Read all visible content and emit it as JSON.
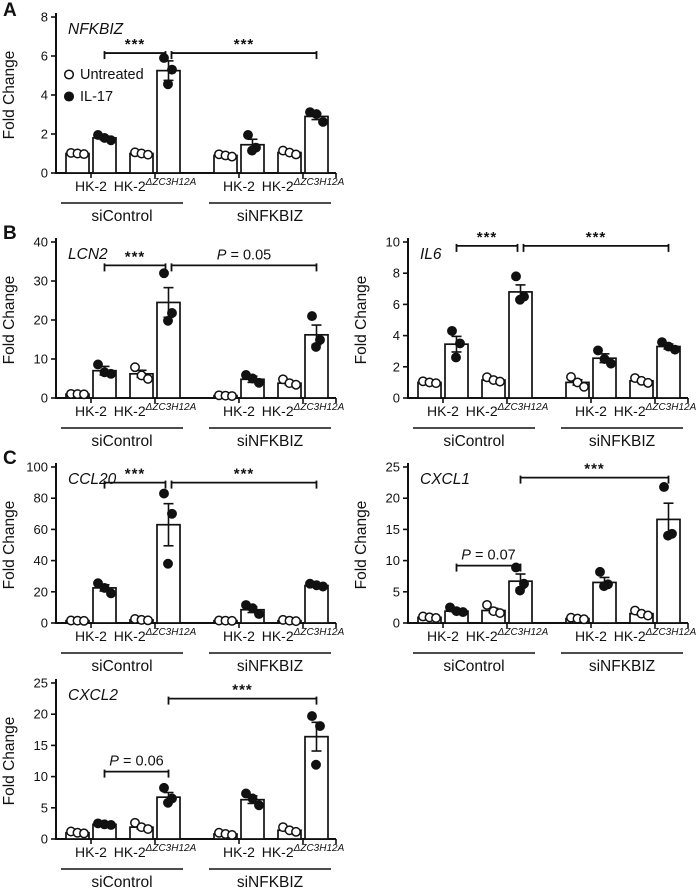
{
  "figure": {
    "background": "#ffffff",
    "ink": "#111111"
  },
  "panels": [
    {
      "letter": "A"
    },
    {
      "letter": "B"
    },
    {
      "letter": "C"
    }
  ],
  "legend": {
    "untreated_label": "Untreated",
    "il17_label": "IL-17"
  },
  "chart_data": [
    {
      "id": "nfkbiz",
      "panel": "A",
      "type": "bar",
      "title": "NFKBIZ",
      "ylabel": "Fold Change",
      "ylim": [
        0,
        8
      ],
      "yticks": [
        0,
        2,
        4,
        6,
        8
      ],
      "grid": false,
      "legend_position": "inside-left",
      "legend": [
        {
          "marker": "open",
          "label": "Untreated"
        },
        {
          "marker": "filled",
          "label": "IL-17"
        }
      ],
      "cells": [
        {
          "base": "HK-2",
          "sup": ""
        },
        {
          "base": "HK-2",
          "sup": "ΔZC3H12A"
        },
        {
          "base": "HK-2",
          "sup": ""
        },
        {
          "base": "HK-2",
          "sup": "ΔZC3H12A"
        }
      ],
      "conditions": [
        "siControl",
        "siNFKBIZ"
      ],
      "groups": [
        {
          "untreated": {
            "mean": 1.0,
            "err": 0.05,
            "points": [
              1.03,
              1.0,
              0.97
            ]
          },
          "il17": {
            "mean": 1.8,
            "err": 0.09,
            "points": [
              1.95,
              1.8,
              1.68
            ]
          }
        },
        {
          "untreated": {
            "mean": 1.0,
            "err": 0.05,
            "points": [
              1.06,
              1.0,
              0.94
            ]
          },
          "il17": {
            "mean": 5.25,
            "err": 0.5,
            "points": [
              5.9,
              5.3,
              4.55
            ]
          }
        },
        {
          "untreated": {
            "mean": 0.9,
            "err": 0.05,
            "points": [
              0.96,
              0.9,
              0.84
            ]
          },
          "il17": {
            "mean": 1.45,
            "err": 0.28,
            "points": [
              1.95,
              1.3,
              1.15
            ]
          }
        },
        {
          "untreated": {
            "mean": 1.05,
            "err": 0.07,
            "points": [
              1.15,
              1.05,
              0.95
            ]
          },
          "il17": {
            "mean": 2.9,
            "err": 0.16,
            "points": [
              3.12,
              3.02,
              2.62
            ]
          }
        }
      ],
      "sig": [
        {
          "from_bar": 1,
          "to_bar": 3,
          "y": 6.15,
          "label": "***",
          "kind": "stars",
          "to_dx": -3
        },
        {
          "from_bar": 3,
          "to_bar": 7,
          "y": 6.15,
          "label": "***",
          "kind": "stars",
          "from_dx": 3
        }
      ]
    },
    {
      "id": "lcn2",
      "panel": "B",
      "type": "bar",
      "title": "LCN2",
      "ylabel": "Fold Change",
      "ylim": [
        0,
        40
      ],
      "yticks": [
        0,
        10,
        20,
        30,
        40
      ],
      "grid": false,
      "cells": [
        {
          "base": "HK-2",
          "sup": ""
        },
        {
          "base": "HK-2",
          "sup": "ΔZC3H12A"
        },
        {
          "base": "HK-2",
          "sup": ""
        },
        {
          "base": "HK-2",
          "sup": "ΔZC3H12A"
        }
      ],
      "conditions": [
        "siControl",
        "siNFKBIZ"
      ],
      "groups": [
        {
          "untreated": {
            "mean": 1.0,
            "err": 0,
            "points": [
              1.05,
              1.0,
              0.95
            ]
          },
          "il17": {
            "mean": 7.0,
            "err": 1.1,
            "points": [
              8.6,
              6.6,
              6.2
            ]
          }
        },
        {
          "untreated": {
            "mean": 6.2,
            "err": 0.9,
            "points": [
              7.9,
              5.8,
              4.9
            ]
          },
          "il17": {
            "mean": 24.5,
            "err": 3.8,
            "points": [
              32,
              21.8,
              19.8
            ]
          }
        },
        {
          "untreated": {
            "mean": 0.6,
            "err": 0,
            "points": [
              0.7,
              0.6,
              0.5
            ]
          },
          "il17": {
            "mean": 4.8,
            "err": 0.8,
            "points": [
              5.9,
              5.0,
              3.9
            ]
          }
        },
        {
          "untreated": {
            "mean": 3.8,
            "err": 0.4,
            "points": [
              4.8,
              3.8,
              3.4
            ]
          },
          "il17": {
            "mean": 16.2,
            "err": 2.5,
            "points": [
              21,
              14.9,
              13.1
            ]
          }
        }
      ],
      "sig": [
        {
          "from_bar": 1,
          "to_bar": 3,
          "y": 34,
          "label": "***",
          "kind": "stars",
          "to_dx": -3
        },
        {
          "from_bar": 3,
          "to_bar": 7,
          "y": 34,
          "label": "P = 0.05",
          "kind": "p",
          "from_dx": 3
        }
      ]
    },
    {
      "id": "il6",
      "panel": "B",
      "type": "bar",
      "title": "IL6",
      "ylabel": "Fold Change",
      "ylim": [
        0,
        10
      ],
      "yticks": [
        0,
        2,
        4,
        6,
        8,
        10
      ],
      "grid": false,
      "cells": [
        {
          "base": "HK-2",
          "sup": ""
        },
        {
          "base": "HK-2",
          "sup": "ΔZC3H12A"
        },
        {
          "base": "HK-2",
          "sup": ""
        },
        {
          "base": "HK-2",
          "sup": "ΔZC3H12A"
        }
      ],
      "conditions": [
        "siControl",
        "siNFKBIZ"
      ],
      "groups": [
        {
          "untreated": {
            "mean": 1.0,
            "err": 0.05,
            "points": [
              1.07,
              1.0,
              0.95
            ]
          },
          "il17": {
            "mean": 3.45,
            "err": 0.5,
            "points": [
              4.3,
              3.5,
              2.6
            ]
          }
        },
        {
          "untreated": {
            "mean": 1.15,
            "err": 0.08,
            "points": [
              1.33,
              1.15,
              1.05
            ]
          },
          "il17": {
            "mean": 6.8,
            "err": 0.45,
            "points": [
              7.8,
              6.5,
              6.3
            ]
          }
        },
        {
          "untreated": {
            "mean": 1.0,
            "err": 0.17,
            "points": [
              1.35,
              1.0,
              0.72
            ]
          },
          "il17": {
            "mean": 2.55,
            "err": 0.28,
            "points": [
              3.05,
              2.5,
              2.2
            ]
          }
        },
        {
          "untreated": {
            "mean": 1.1,
            "err": 0.08,
            "points": [
              1.28,
              1.1,
              0.97
            ]
          },
          "il17": {
            "mean": 3.3,
            "err": 0.16,
            "points": [
              3.58,
              3.3,
              3.1
            ]
          }
        }
      ],
      "sig": [
        {
          "from_bar": 1,
          "to_bar": 3,
          "y": 9.75,
          "label": "***",
          "kind": "stars",
          "to_dx": -3
        },
        {
          "from_bar": 3,
          "to_bar": 7,
          "y": 9.75,
          "label": "***",
          "kind": "stars",
          "from_dx": 3
        }
      ]
    },
    {
      "id": "ccl20",
      "panel": "C",
      "type": "bar",
      "title": "CCL20",
      "ylabel": "Fold Change",
      "ylim": [
        0,
        100
      ],
      "yticks": [
        0,
        20,
        40,
        60,
        80,
        100
      ],
      "grid": false,
      "cells": [
        {
          "base": "HK-2",
          "sup": ""
        },
        {
          "base": "HK-2",
          "sup": "ΔZC3H12A"
        },
        {
          "base": "HK-2",
          "sup": ""
        },
        {
          "base": "HK-2",
          "sup": "ΔZC3H12A"
        }
      ],
      "conditions": [
        "siControl",
        "siNFKBIZ"
      ],
      "groups": [
        {
          "untreated": {
            "mean": 1.5,
            "err": 0,
            "points": [
              1.6,
              1.5,
              1.4
            ]
          },
          "il17": {
            "mean": 22.5,
            "err": 2.0,
            "points": [
              25.5,
              22.5,
              19
            ]
          }
        },
        {
          "untreated": {
            "mean": 2.0,
            "err": 0.3,
            "points": [
              2.6,
              2.0,
              1.7
            ]
          },
          "il17": {
            "mean": 63,
            "err": 13.5,
            "points": [
              83,
              70,
              38
            ]
          }
        },
        {
          "untreated": {
            "mean": 1.5,
            "err": 0,
            "points": [
              1.6,
              1.5,
              1.4
            ]
          },
          "il17": {
            "mean": 8.5,
            "err": 1.8,
            "points": [
              11.5,
              9.5,
              5.8
            ]
          }
        },
        {
          "untreated": {
            "mean": 1.5,
            "err": 0.2,
            "points": [
              2.0,
              1.5,
              1.2
            ]
          },
          "il17": {
            "mean": 24,
            "err": 0.8,
            "points": [
              25.2,
              24.2,
              23.4
            ]
          }
        }
      ],
      "sig": [
        {
          "from_bar": 1,
          "to_bar": 3,
          "y": 90,
          "label": "***",
          "kind": "stars",
          "to_dx": -3
        },
        {
          "from_bar": 3,
          "to_bar": 7,
          "y": 90,
          "label": "***",
          "kind": "stars",
          "from_dx": 3
        }
      ]
    },
    {
      "id": "cxcl1",
      "panel": "C",
      "type": "bar",
      "title": "CXCL1",
      "ylabel": "Fold Change",
      "ylim": [
        0,
        25
      ],
      "yticks": [
        0,
        5,
        10,
        15,
        20,
        25
      ],
      "grid": false,
      "cells": [
        {
          "base": "HK-2",
          "sup": ""
        },
        {
          "base": "HK-2",
          "sup": "ΔZC3H12A"
        },
        {
          "base": "HK-2",
          "sup": ""
        },
        {
          "base": "HK-2",
          "sup": "ΔZC3H12A"
        }
      ],
      "conditions": [
        "siControl",
        "siNFKBIZ"
      ],
      "groups": [
        {
          "untreated": {
            "mean": 0.9,
            "err": 0.08,
            "points": [
              1.05,
              0.9,
              0.8
            ]
          },
          "il17": {
            "mean": 1.9,
            "err": 0.2,
            "points": [
              2.5,
              1.9,
              1.75
            ]
          }
        },
        {
          "untreated": {
            "mean": 2.0,
            "err": 0.35,
            "points": [
              2.9,
              1.9,
              1.6
            ]
          },
          "il17": {
            "mean": 6.7,
            "err": 1.15,
            "points": [
              8.9,
              6.3,
              5.2
            ]
          }
        },
        {
          "untreated": {
            "mean": 0.7,
            "err": 0.08,
            "points": [
              0.85,
              0.7,
              0.6
            ]
          },
          "il17": {
            "mean": 6.5,
            "err": 0.8,
            "points": [
              8.2,
              6.2,
              5.9
            ]
          }
        },
        {
          "untreated": {
            "mean": 1.5,
            "err": 0.25,
            "points": [
              2.0,
              1.5,
              1.2
            ]
          },
          "il17": {
            "mean": 16.6,
            "err": 2.6,
            "points": [
              21.8,
              14.3,
              14.0
            ]
          }
        }
      ],
      "sig": [
        {
          "from_bar": 1,
          "to_bar": 3,
          "y": 9.2,
          "label": "P = 0.07",
          "kind": "p"
        },
        {
          "from_bar": 3,
          "to_bar": 7,
          "y": 23.3,
          "label": "***",
          "kind": "stars"
        }
      ]
    },
    {
      "id": "cxcl2",
      "panel": "C",
      "type": "bar",
      "title": "CXCL2",
      "ylabel": "Fold Change",
      "ylim": [
        0,
        25
      ],
      "yticks": [
        0,
        5,
        10,
        15,
        20,
        25
      ],
      "grid": false,
      "cells": [
        {
          "base": "HK-2",
          "sup": ""
        },
        {
          "base": "HK-2",
          "sup": "ΔZC3H12A"
        },
        {
          "base": "HK-2",
          "sup": ""
        },
        {
          "base": "HK-2",
          "sup": "ΔZC3H12A"
        }
      ],
      "conditions": [
        "siControl",
        "siNFKBIZ"
      ],
      "groups": [
        {
          "untreated": {
            "mean": 1.0,
            "err": 0.1,
            "points": [
              1.2,
              1.0,
              0.9
            ]
          },
          "il17": {
            "mean": 2.35,
            "err": 0.1,
            "points": [
              2.5,
              2.35,
              2.25
            ]
          }
        },
        {
          "untreated": {
            "mean": 1.9,
            "err": 0.3,
            "points": [
              2.6,
              1.9,
              1.6
            ]
          },
          "il17": {
            "mean": 6.7,
            "err": 0.75,
            "points": [
              8.2,
              6.5,
              5.8
            ]
          }
        },
        {
          "untreated": {
            "mean": 0.8,
            "err": 0.12,
            "points": [
              1.0,
              0.8,
              0.65
            ]
          },
          "il17": {
            "mean": 6.3,
            "err": 0.6,
            "points": [
              7.3,
              6.5,
              5.4
            ]
          }
        },
        {
          "untreated": {
            "mean": 1.4,
            "err": 0.2,
            "points": [
              1.9,
              1.4,
              1.15
            ]
          },
          "il17": {
            "mean": 16.4,
            "err": 2.3,
            "points": [
              19.7,
              18.1,
              11.9
            ]
          }
        }
      ],
      "sig": [
        {
          "from_bar": 1,
          "to_bar": 3,
          "y": 10.8,
          "label": "P = 0.06",
          "kind": "p"
        },
        {
          "from_bar": 3,
          "to_bar": 7,
          "y": 22.5,
          "label": "***",
          "kind": "stars"
        }
      ]
    }
  ]
}
